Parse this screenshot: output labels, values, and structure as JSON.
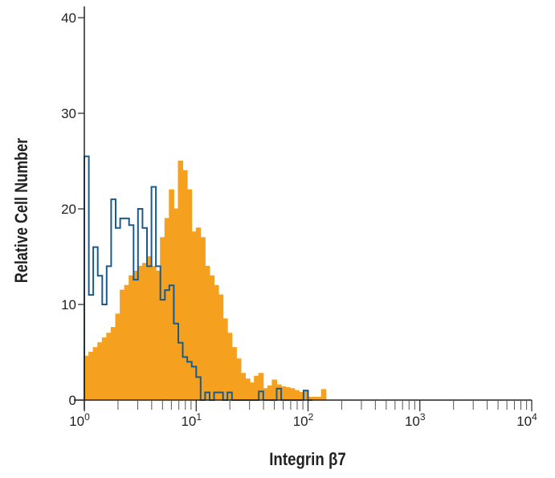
{
  "chart_data": {
    "type": "histogram",
    "title": "",
    "xlabel": "Integrin β7",
    "ylabel": "Relative Cell Number",
    "x_scale": "log",
    "xlim": [
      1,
      10000
    ],
    "ylim": [
      0,
      42
    ],
    "x_ticks": [
      {
        "base": "10",
        "exp": "0"
      },
      {
        "base": "10",
        "exp": "1"
      },
      {
        "base": "10",
        "exp": "2"
      },
      {
        "base": "10",
        "exp": "3"
      },
      {
        "base": "10",
        "exp": "4"
      }
    ],
    "y_ticks": [
      "0",
      "10",
      "20",
      "30",
      "40"
    ],
    "grid": false,
    "bin_log10_width": 0.04,
    "series": [
      {
        "style": "filled",
        "color": "#F5A01E",
        "bin_start_log10": 0,
        "values": [
          4.6,
          5,
          5.5,
          6,
          6.5,
          7,
          7.6,
          9,
          11.5,
          12,
          13,
          13.5,
          14,
          14.3,
          15,
          14,
          13.5,
          17,
          19,
          22,
          20,
          25,
          24,
          22,
          17.6,
          18,
          17,
          14,
          13,
          12,
          11,
          8.5,
          7,
          5.5,
          4.3,
          2.8,
          2.2,
          1.8,
          2.5,
          2.8,
          1.2,
          1.5,
          2.1,
          1.6,
          1.4,
          1.3,
          1.2,
          1,
          0.8,
          0.9,
          0.3,
          0.3,
          0.3,
          1.1
        ]
      },
      {
        "style": "outline",
        "color": "#1A5A8C",
        "bin_start_log10": 0,
        "values": [
          25.5,
          11,
          16,
          13,
          10,
          14,
          21,
          18,
          19,
          19,
          18.3,
          12.6,
          20,
          18,
          14,
          22.3,
          14,
          10.5,
          11.5,
          12,
          8,
          6,
          4.5,
          4,
          3.5,
          2.4,
          0,
          0.8,
          0,
          0.8,
          0.8,
          0,
          0.8,
          0,
          0,
          0,
          0,
          0,
          0,
          0.9,
          0,
          0,
          0,
          1.2,
          0,
          0,
          0,
          0,
          0,
          1,
          0
        ]
      }
    ]
  }
}
